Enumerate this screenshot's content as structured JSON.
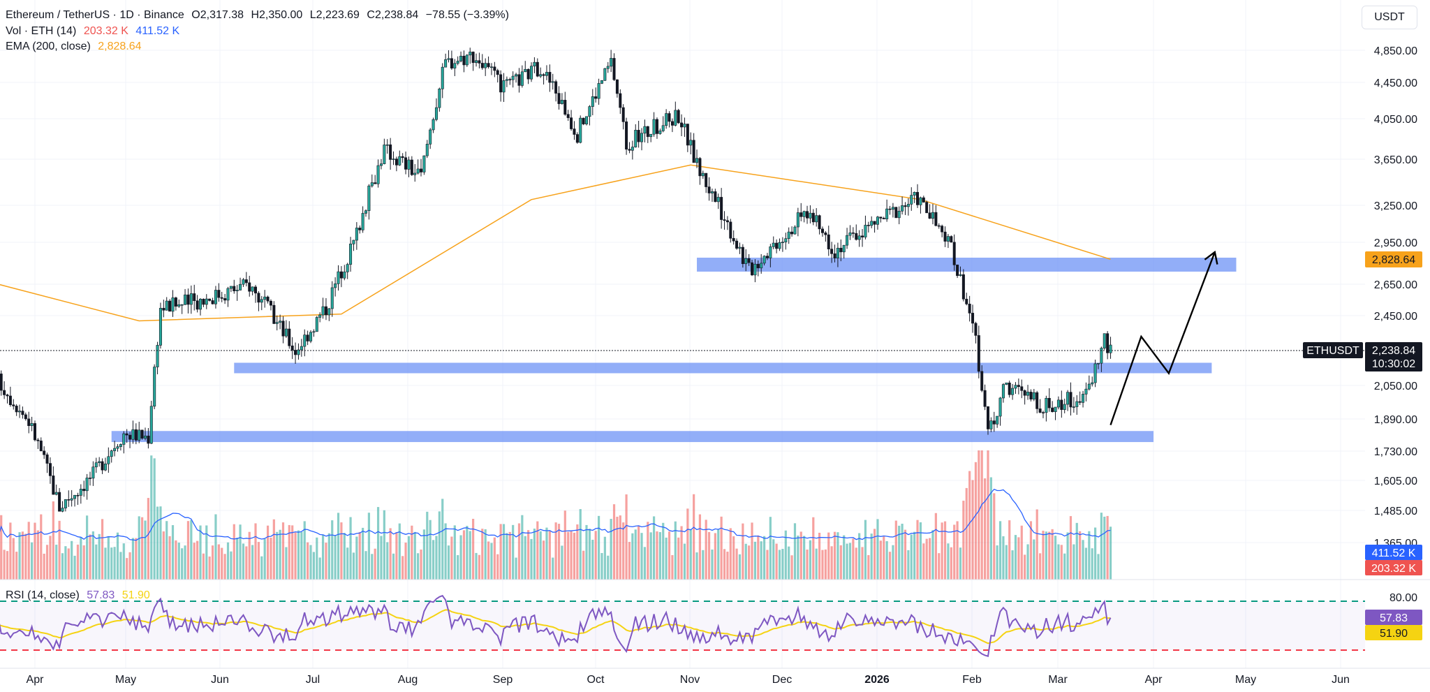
{
  "header": {
    "symbol": "Ethereum / TetherUS · 1D · Binance",
    "open_label": "O",
    "open": "2,317.38",
    "high_label": "H",
    "high": "2,350.00",
    "low_label": "L",
    "low": "2,223.69",
    "close_label": "C",
    "close": "2,238.84",
    "change": "−78.55 (−3.39%)"
  },
  "vol_legend": {
    "label": "Vol · ETH (14)",
    "v1": "203.32 K",
    "v2": "411.52 K"
  },
  "ema_legend": {
    "label": "EMA (200, close)",
    "value": "2,828.64"
  },
  "rsi_legend": {
    "label": "RSI (14, close)",
    "v1": "57.83",
    "v2": "51.90"
  },
  "currency_button": "USDT",
  "price_axis": [
    "4,850.00",
    "4,450.00",
    "4,050.00",
    "3,650.00",
    "3,250.00",
    "2,950.00",
    "2,650.00",
    "2,450.00",
    "2,050.00",
    "1,890.00",
    "1,730.00",
    "1,605.00",
    "1,485.00",
    "1,365.00"
  ],
  "price_tags": {
    "ema": "2,828.64",
    "symbol": "ETHUSDT",
    "last": "2,238.84",
    "countdown": "10:30:02",
    "vol_ma": "411.52 K",
    "vol": "203.32 K"
  },
  "rsi_axis": [
    "80.00"
  ],
  "rsi_tags": {
    "rsi": "57.83",
    "ma": "51.90"
  },
  "time_axis": [
    "Apr",
    "May",
    "Jun",
    "Jul",
    "Aug",
    "Sep",
    "Oct",
    "Nov",
    "Dec",
    "2026",
    "Feb",
    "Mar",
    "Apr",
    "May",
    "Jun"
  ],
  "colors": {
    "up": "#26a69a",
    "down": "#ef5350",
    "ema": "#f7a21b",
    "vol_ma": "#2962ff",
    "rsi": "#7e57c2",
    "rsi_ma": "#f5d312",
    "zone": "#6d93f5",
    "upper_band": "#089981",
    "lower_band": "#f23645"
  },
  "chart_data": {
    "type": "candlestick",
    "symbol": "Ethereum / TetherUS",
    "interval": "1D",
    "exchange": "Binance",
    "x_range": [
      "Mar",
      "Jun"
    ],
    "price_path": [
      {
        "date": "Mar 20",
        "price": 2080
      },
      {
        "date": "Mar 30",
        "price": 1880
      },
      {
        "date": "Apr 9",
        "price": 1500
      },
      {
        "date": "Apr 20",
        "price": 1630
      },
      {
        "date": "Apr 30",
        "price": 1820
      },
      {
        "date": "May 8",
        "price": 1800
      },
      {
        "date": "May 12",
        "price": 2500
      },
      {
        "date": "May 25",
        "price": 2550
      },
      {
        "date": "Jun 10",
        "price": 2650
      },
      {
        "date": "Jun 25",
        "price": 2250
      },
      {
        "date": "Jul 5",
        "price": 2500
      },
      {
        "date": "Jul 14",
        "price": 2950
      },
      {
        "date": "Jul 24",
        "price": 3750
      },
      {
        "date": "Aug 5",
        "price": 3500
      },
      {
        "date": "Aug 13",
        "price": 4700
      },
      {
        "date": "Aug 22",
        "price": 4800
      },
      {
        "date": "Sep 1",
        "price": 4380
      },
      {
        "date": "Sep 13",
        "price": 4650
      },
      {
        "date": "Sep 25",
        "price": 3900
      },
      {
        "date": "Oct 6",
        "price": 4700
      },
      {
        "date": "Oct 11",
        "price": 3800
      },
      {
        "date": "Oct 28",
        "price": 4100
      },
      {
        "date": "Nov 3",
        "price": 3600
      },
      {
        "date": "Nov 20",
        "price": 2750
      },
      {
        "date": "Dec 9",
        "price": 3200
      },
      {
        "date": "Dec 18",
        "price": 2900
      },
      {
        "date": "Jan 6",
        "price": 3200
      },
      {
        "date": "Jan 14",
        "price": 3320
      },
      {
        "date": "Jan 25",
        "price": 2900
      },
      {
        "date": "Feb 1",
        "price": 2400
      },
      {
        "date": "Feb 6",
        "price": 1830
      },
      {
        "date": "Feb 12",
        "price": 2050
      },
      {
        "date": "Feb 25",
        "price": 1950
      },
      {
        "date": "Mar 10",
        "price": 2000
      },
      {
        "date": "Mar 16",
        "price": 2320
      },
      {
        "date": "Mar 18",
        "price": 2238.84
      }
    ],
    "ema200": [
      {
        "date": "Mar 20",
        "price": 2650
      },
      {
        "date": "May 5",
        "price": 2420
      },
      {
        "date": "Jul 10",
        "price": 2460
      },
      {
        "date": "Sep 10",
        "price": 3300
      },
      {
        "date": "Nov 1",
        "price": 3600
      },
      {
        "date": "Jan 15",
        "price": 3300
      },
      {
        "date": "Mar 18",
        "price": 2828.64
      }
    ],
    "zones": [
      {
        "from": "Nov 3",
        "to": "Apr 28",
        "low": 2740,
        "high": 2840
      },
      {
        "from": "Jun 5",
        "to": "Apr 20",
        "low": 2120,
        "high": 2180
      },
      {
        "from": "Apr 26",
        "to": "Apr 1",
        "low": 1775,
        "high": 1830
      }
    ],
    "projection": [
      {
        "date": "Mar 18",
        "price": 1860
      },
      {
        "date": "Mar 28",
        "price": 2330
      },
      {
        "date": "Apr 6",
        "price": 2120
      },
      {
        "date": "Apr 21",
        "price": 2880
      }
    ],
    "current_price": 2238.84,
    "rsi_ylim": [
      20,
      80
    ],
    "rsi_levels": [
      30,
      70
    ]
  }
}
